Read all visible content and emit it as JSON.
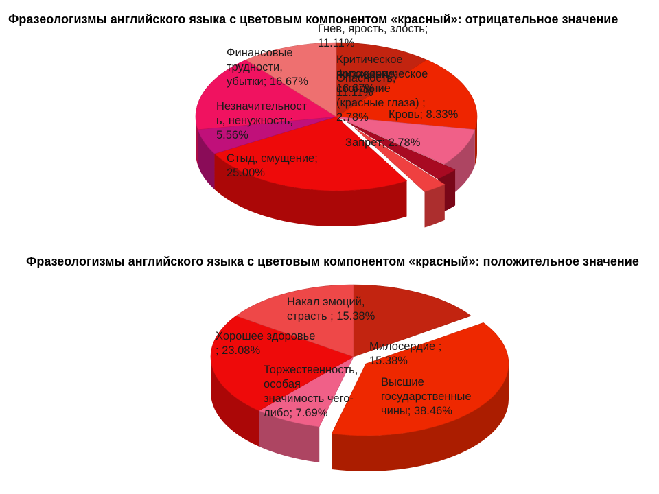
{
  "chart_data": [
    {
      "type": "pie",
      "title": "Фразеологизмы английского языка  с цветовым компонентом  «красный»: отрицательное значение",
      "slices": [
        {
          "label": "Гнев, ярость, злость",
          "value": 11.11,
          "text": [
            "Гнев, ярость, злость;",
            "11.11%"
          ],
          "color": "#c22410"
        },
        {
          "label": "Критическое состояние",
          "value": 16.67,
          "text": [
            "Критическое",
            "положение;",
            "16.67%"
          ],
          "color": "#ee2500"
        },
        {
          "label": "Кровь",
          "value": 8.33,
          "text": [
            "Кровь; 8.33%"
          ],
          "color": "#f06088"
        },
        {
          "label": "Физиологическое состояние (красные глаза)",
          "value": 2.78,
          "text": [
            "Физиологическое",
            "состояние",
            "(красные глаза) ;",
            "2.78%"
          ],
          "color": "#a80a22"
        },
        {
          "label": "Запрет",
          "value": 2.78,
          "text": [
            "Запрет; 2.78%"
          ],
          "color": "#ef4040"
        },
        {
          "label": "Стыд, смущение",
          "value": 25.0,
          "text": [
            "Стыд, смущение;",
            "25.00%"
          ],
          "color": "#ee0a0a"
        },
        {
          "label": "Незначительность, ненужность",
          "value": 5.56,
          "text": [
            "Незначительност",
            "ь, ненужность;",
            "5.56%"
          ],
          "color": "#c0107a"
        },
        {
          "label": "Финансовые трудности, убытки",
          "value": 16.67,
          "text": [
            "Финансовые",
            "трудности,",
            "убытки; 16.67%"
          ],
          "color": "#f01260"
        },
        {
          "label": "Опасность",
          "value": 11.11,
          "text": [
            "Опасность;",
            "11.11%"
          ],
          "color": "#ee7070"
        }
      ]
    },
    {
      "type": "pie",
      "title": "Фразеологизмы английского языка  с цветовым компонентом  «красный»: положительное значение",
      "slices": [
        {
          "label": "Милосердие",
          "value": 15.38,
          "text": [
            "Милосердие ;",
            "15.38%"
          ],
          "color": "#c22410"
        },
        {
          "label": "Высшие государственные чины",
          "value": 38.46,
          "text": [
            "Высшие",
            "государственные",
            "чины; 38.46%"
          ],
          "color": "#ee2800"
        },
        {
          "label": "Торжественность, особая значимость чего-либо",
          "value": 7.69,
          "text": [
            "Торжественность,",
            "особая",
            "значимость чего-",
            "либо; 7.69%"
          ],
          "color": "#f06088"
        },
        {
          "label": "Хорошее здоровье",
          "value": 23.08,
          "text": [
            "Хорошее здоровье",
            "; 23.08%"
          ],
          "color": "#ee0a0a"
        },
        {
          "label": "Накал эмоций, страсть",
          "value": 15.38,
          "text": [
            "Накал эмоций,",
            "страсть ; 15.38%"
          ],
          "color": "#ee4848"
        }
      ]
    }
  ]
}
